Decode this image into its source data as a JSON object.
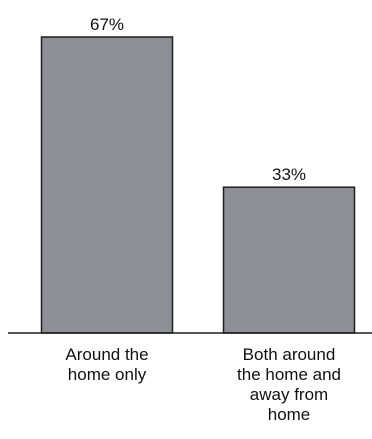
{
  "chart_data": {
    "type": "bar",
    "categories": [
      [
        "Around the",
        "home only"
      ],
      [
        "Both around",
        "the home and",
        "away from",
        "home"
      ]
    ],
    "values": [
      67,
      33
    ],
    "value_labels": [
      "67%",
      "33%"
    ],
    "title": "",
    "xlabel": "",
    "ylabel": "",
    "ylim": [
      0,
      67
    ],
    "grid": false,
    "legend": "none",
    "colors": {
      "bar_fill": "#8e8f94",
      "bar_stroke": "#1f1f1f",
      "axis": "#1f1f1f"
    }
  }
}
